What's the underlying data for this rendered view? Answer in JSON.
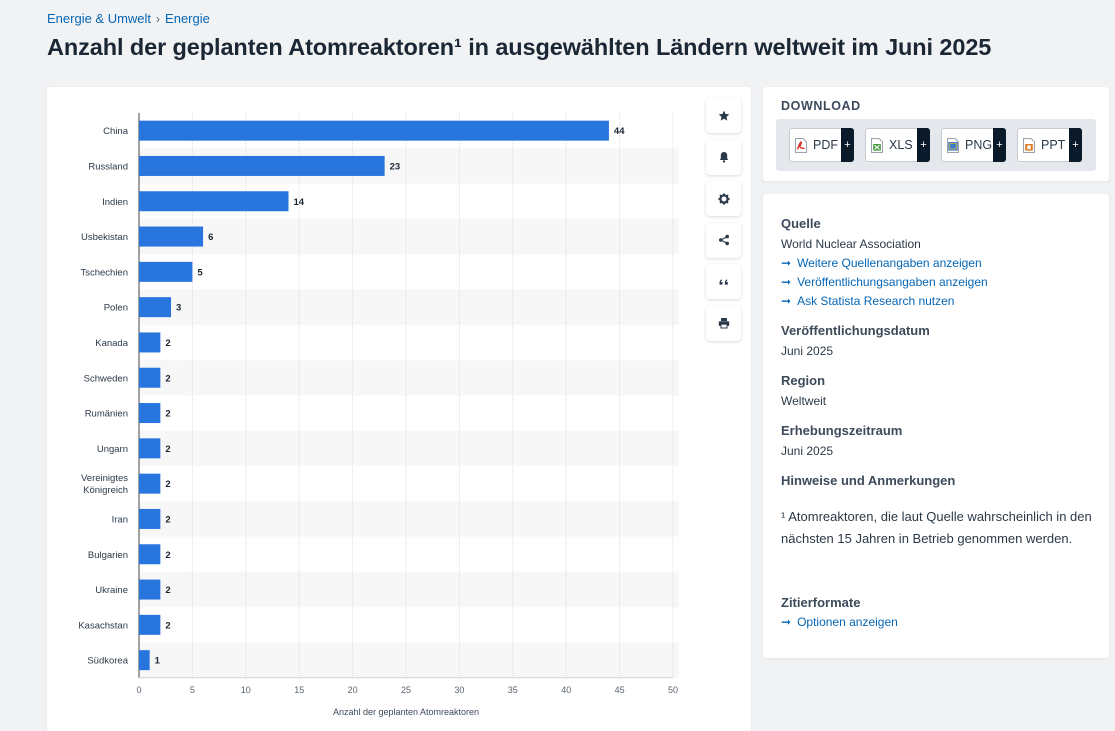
{
  "breadcrumb": {
    "items": [
      "Energie & Umwelt",
      "Energie"
    ],
    "separator": "›"
  },
  "page_title": "Anzahl der geplanten Atomreaktoren¹ in ausgewählten Ländern weltweit im Juni 2025",
  "chart_data": {
    "type": "bar",
    "orientation": "horizontal",
    "categories": [
      "China",
      "Russland",
      "Indien",
      "Usbekistan",
      "Tschechien",
      "Polen",
      "Kanada",
      "Schweden",
      "Rumänien",
      "Ungarn",
      [
        "Vereinigtes",
        "Königreich"
      ],
      "Iran",
      "Bulgarien",
      "Ukraine",
      "Kasachstan",
      "Südkorea"
    ],
    "values": [
      44,
      23,
      14,
      6,
      5,
      3,
      2,
      2,
      2,
      2,
      2,
      2,
      2,
      2,
      2,
      1
    ],
    "xlabel": "Anzahl der geplanten Atomreaktoren",
    "ylabel": "",
    "xlim": [
      0,
      50
    ],
    "xticks": [
      0,
      5,
      10,
      15,
      20,
      25,
      30,
      35,
      40,
      45,
      50
    ],
    "grid": true,
    "bar_color": "#2875de"
  },
  "tools": [
    {
      "icon": "star-icon",
      "name": "favorite-button"
    },
    {
      "icon": "bell-icon",
      "name": "notification-button"
    },
    {
      "icon": "gear-icon",
      "name": "settings-button"
    },
    {
      "icon": "share-icon",
      "name": "share-button"
    },
    {
      "icon": "quote-icon",
      "name": "cite-button"
    },
    {
      "icon": "print-icon",
      "name": "print-button"
    }
  ],
  "download": {
    "title": "DOWNLOAD",
    "buttons": [
      {
        "label": "PDF",
        "icon": "pdf-file-icon",
        "color": "#d8342c"
      },
      {
        "label": "XLS",
        "icon": "xls-file-icon",
        "color": "#3e9b39"
      },
      {
        "label": "PNG",
        "icon": "png-file-icon",
        "color": "#3b7bd1"
      },
      {
        "label": "PPT",
        "icon": "ppt-file-icon",
        "color": "#e07722"
      }
    ],
    "plus": "+"
  },
  "info": {
    "source_heading": "Quelle",
    "source_value": "World Nuclear Association",
    "links": [
      "Weitere Quellenangaben anzeigen",
      "Veröffentlichungsangaben anzeigen",
      "Ask Statista Research nutzen"
    ],
    "pub_date_heading": "Veröffentlichungsdatum",
    "pub_date_value": "Juni 2025",
    "region_heading": "Region",
    "region_value": "Weltweit",
    "period_heading": "Erhebungszeitraum",
    "period_value": "Juni 2025",
    "notes_heading": "Hinweise und Anmerkungen",
    "notes_text": "¹ Atomreaktoren, die laut Quelle wahrscheinlich in den nächsten 15 Jahren in Betrieb genommen werden.",
    "cite_heading": "Zitierformate",
    "cite_link": "Optionen anzeigen",
    "arrow": "➞"
  },
  "colors": {
    "link": "#0666b4",
    "title": "#1b2735",
    "bar": "#2875de"
  }
}
